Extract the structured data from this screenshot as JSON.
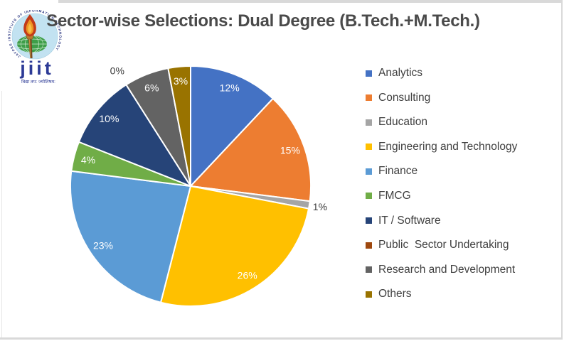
{
  "logo": {
    "ring_text": "JAYPEE INSTITUTE OF INFORMATION TECHNOLOGY",
    "wordmark": "jiit",
    "motto": "विद्या तप: ज्योतिषम:"
  },
  "chart_data": {
    "type": "pie",
    "title": "Sector-wise Selections: Dual Degree (B.Tech.+M.Tech.)",
    "legend_position": "right",
    "start_angle_deg": 0,
    "direction": "clockwise",
    "slices": [
      {
        "label": "Analytics",
        "value": 12,
        "pct_label": "12%",
        "color": "#4472C4",
        "label_placement": "inside"
      },
      {
        "label": "Consulting",
        "value": 15,
        "pct_label": "15%",
        "color": "#ED7D31",
        "label_placement": "inside"
      },
      {
        "label": "Education",
        "value": 1,
        "pct_label": "1%",
        "color": "#A5A5A5",
        "label_placement": "outside"
      },
      {
        "label": "Engineering and Technology",
        "value": 26,
        "pct_label": "26%",
        "color": "#FFC000",
        "label_placement": "inside"
      },
      {
        "label": "Finance",
        "value": 23,
        "pct_label": "23%",
        "color": "#5B9BD5",
        "label_placement": "inside"
      },
      {
        "label": "FMCG",
        "value": 4,
        "pct_label": "4%",
        "color": "#70AD47",
        "label_placement": "inside"
      },
      {
        "label": "IT / Software",
        "value": 10,
        "pct_label": "10%",
        "color": "#264478",
        "label_placement": "inside"
      },
      {
        "label": "Public  Sector Undertaking",
        "value": 0,
        "pct_label": "0%",
        "color": "#9E480E",
        "label_placement": "outside"
      },
      {
        "label": "Research and Development",
        "value": 6,
        "pct_label": "6%",
        "color": "#636363",
        "label_placement": "inside"
      },
      {
        "label": "Others",
        "value": 3,
        "pct_label": "3%",
        "color": "#997300",
        "label_placement": "inside"
      }
    ]
  },
  "styles": {
    "title_color": "#4a4a4a",
    "label_inside_color": "#ffffff",
    "label_outside_color": "#3b3b3b",
    "frame_color": "#d9d9d9",
    "legend_text_color": "#404040"
  }
}
